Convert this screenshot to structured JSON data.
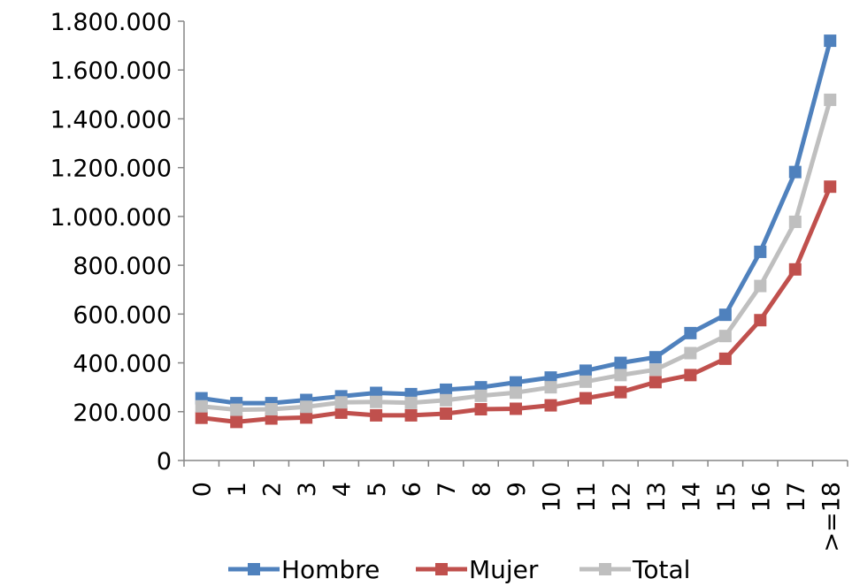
{
  "chart_data": {
    "type": "line",
    "title": "",
    "xlabel": "",
    "ylabel": "",
    "categories": [
      "0",
      "1",
      "2",
      "3",
      "4",
      "5",
      "6",
      "7",
      "8",
      "9",
      "10",
      "11",
      "12",
      "13",
      "14",
      "15",
      "16",
      "17",
      ">=18"
    ],
    "ylim": [
      0,
      1800000
    ],
    "yticks": [
      0,
      200000,
      400000,
      600000,
      800000,
      1000000,
      1200000,
      1400000,
      1600000,
      1800000
    ],
    "ytick_labels": [
      "0",
      "200.000",
      "400.000",
      "600.000",
      "800.000",
      "1.000.000",
      "1.200.000",
      "1.400.000",
      "1.600.000",
      "1.800.000"
    ],
    "grid": false,
    "legend_position": "bottom",
    "series": [
      {
        "name": "Hombre",
        "color": "#4F81BD",
        "values": [
          255000,
          235000,
          235000,
          248000,
          263000,
          277000,
          272000,
          290000,
          300000,
          320000,
          340000,
          368000,
          400000,
          423000,
          522000,
          597000,
          855000,
          1182000,
          1720000
        ]
      },
      {
        "name": "Mujer",
        "color": "#C0504D",
        "values": [
          175000,
          158000,
          172000,
          176000,
          196000,
          185000,
          185000,
          192000,
          210000,
          212000,
          226000,
          255000,
          280000,
          321000,
          350000,
          417000,
          575000,
          783000,
          1122000
        ]
      },
      {
        "name": "Total",
        "color": "#BFBFBF",
        "values": [
          222000,
          208000,
          210000,
          220000,
          238000,
          240000,
          236000,
          247000,
          265000,
          278000,
          300000,
          323000,
          350000,
          372000,
          440000,
          510000,
          715000,
          978000,
          1478000
        ]
      }
    ]
  }
}
